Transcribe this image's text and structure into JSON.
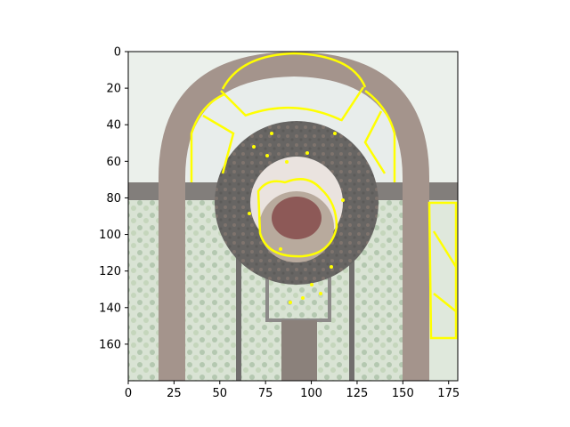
{
  "figure": {
    "image_description_icon": "wreath-photo-with-yellow-edge-overlay",
    "overlay_color": "#ffff00",
    "axes": {
      "xlim": [
        0,
        180
      ],
      "ylim": [
        180,
        0
      ],
      "x_ticks": [
        0,
        25,
        50,
        75,
        100,
        125,
        150,
        175
      ],
      "y_ticks": [
        0,
        20,
        40,
        60,
        80,
        100,
        120,
        140,
        160
      ],
      "x_tick_labels": [
        "0",
        "25",
        "50",
        "75",
        "100",
        "125",
        "150",
        "175"
      ],
      "y_tick_labels": [
        "0",
        "20",
        "40",
        "60",
        "80",
        "100",
        "120",
        "140",
        "160"
      ]
    }
  }
}
